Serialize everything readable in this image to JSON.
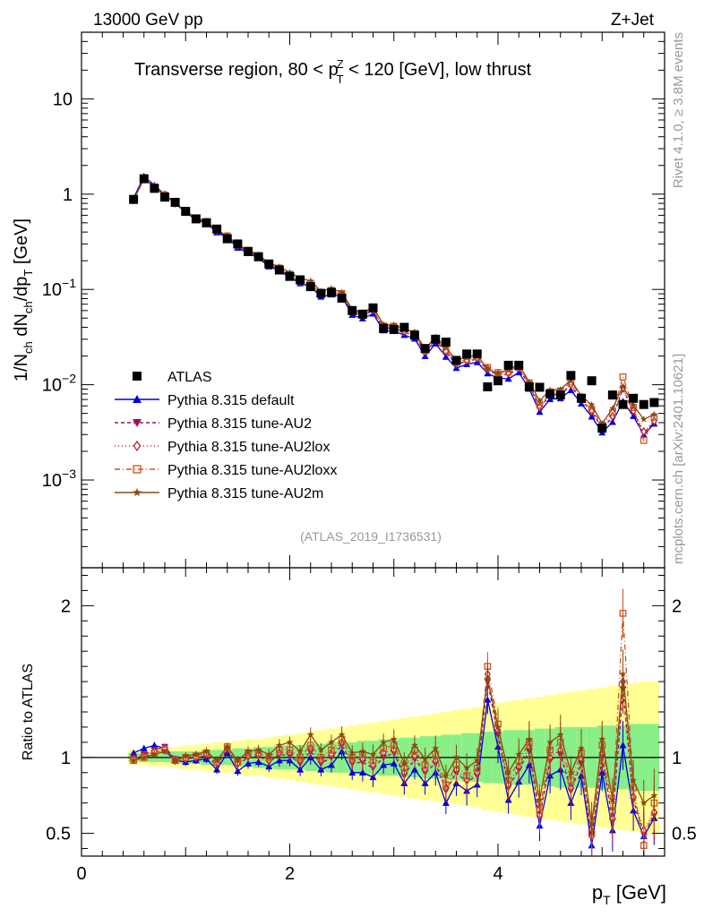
{
  "header": {
    "energy": "13000 GeV pp",
    "process": "Z+Jet"
  },
  "side_labels": {
    "rivet": "Rivet 4.1.0, ≥ 3.8M events",
    "mcplots": "mcplots.cern.ch [arXiv:2401.10621]"
  },
  "chart_data": {
    "type": "scatter",
    "title": "Transverse region, 80 < p_T^Z < 120 [GeV], low thrust",
    "title_parts": {
      "pre": "Transverse region, 80 < p",
      "sup": "Z",
      "sub": "T",
      "post": " < 120 [GeV], low thrust"
    },
    "analysis_tag": "(ATLAS_2019_I1736531)",
    "xlabel": "p_T [GeV]",
    "xlabel_parts": {
      "main": "p",
      "sub": "T",
      "unit": " [GeV]"
    },
    "ylabel": "1/N_ch dN_ch/dp_T [GeV]",
    "ratio_ylabel": "Ratio to ATLAS",
    "xlim": [
      0,
      5.6
    ],
    "ylim": [
      0.00012,
      50
    ],
    "ratio_ylim": [
      0.35,
      2.25
    ],
    "yscale": "log",
    "x_ticks": [
      0,
      2,
      4
    ],
    "x_tick_labels": [
      "0",
      "2",
      "4"
    ],
    "y_ticks": [
      10,
      1,
      0.1,
      0.01,
      0.001
    ],
    "y_tick_labels": [
      {
        "base": "10",
        "exp": ""
      },
      {
        "base": "1",
        "exp": ""
      },
      {
        "base": "10",
        "exp": "−1"
      },
      {
        "base": "10",
        "exp": "−2"
      },
      {
        "base": "10",
        "exp": "−3"
      }
    ],
    "ratio_ticks": [
      0.5,
      1,
      2
    ],
    "ratio_tick_labels": [
      "0.5",
      "1",
      "2"
    ],
    "x": [
      0.5,
      0.6,
      0.7,
      0.8,
      0.9,
      1.0,
      1.1,
      1.2,
      1.3,
      1.4,
      1.5,
      1.6,
      1.7,
      1.8,
      1.9,
      2.0,
      2.1,
      2.2,
      2.3,
      2.4,
      2.5,
      2.6,
      2.7,
      2.8,
      2.9,
      3.0,
      3.1,
      3.2,
      3.3,
      3.4,
      3.5,
      3.6,
      3.7,
      3.8,
      3.9,
      4.0,
      4.1,
      4.2,
      4.3,
      4.4,
      4.5,
      4.6,
      4.7,
      4.8,
      4.9,
      5.0,
      5.1,
      5.2,
      5.3,
      5.4,
      5.5
    ],
    "atlas": [
      0.88,
      1.45,
      1.15,
      0.93,
      0.82,
      0.66,
      0.55,
      0.5,
      0.43,
      0.34,
      0.3,
      0.25,
      0.22,
      0.185,
      0.16,
      0.137,
      0.126,
      0.107,
      0.091,
      0.093,
      0.081,
      0.06,
      0.055,
      0.064,
      0.039,
      0.038,
      0.04,
      0.033,
      0.024,
      0.03,
      0.028,
      0.018,
      0.021,
      0.021,
      0.0095,
      0.011,
      0.016,
      0.016,
      0.0095,
      0.0094,
      0.008,
      0.0078,
      0.0125,
      0.0072,
      0.011,
      0.0035,
      0.0078,
      0.0062,
      0.0072,
      0.0062,
      0.0065
    ],
    "band_green": [
      0.03,
      0.03,
      0.03,
      0.03,
      0.04,
      0.04,
      0.04,
      0.05,
      0.05,
      0.05,
      0.06,
      0.06,
      0.07,
      0.07,
      0.08,
      0.08,
      0.08,
      0.09,
      0.09,
      0.1,
      0.1,
      0.1,
      0.11,
      0.11,
      0.12,
      0.12,
      0.13,
      0.13,
      0.14,
      0.14,
      0.15,
      0.15,
      0.16,
      0.16,
      0.17,
      0.17,
      0.18,
      0.18,
      0.18,
      0.19,
      0.19,
      0.2,
      0.2,
      0.2,
      0.2,
      0.21,
      0.21,
      0.21,
      0.22,
      0.22,
      0.22
    ],
    "band_yellow": [
      0.05,
      0.05,
      0.06,
      0.06,
      0.07,
      0.08,
      0.08,
      0.09,
      0.1,
      0.1,
      0.11,
      0.12,
      0.12,
      0.13,
      0.14,
      0.15,
      0.16,
      0.17,
      0.18,
      0.19,
      0.2,
      0.21,
      0.22,
      0.23,
      0.24,
      0.25,
      0.26,
      0.27,
      0.28,
      0.29,
      0.3,
      0.31,
      0.32,
      0.33,
      0.35,
      0.36,
      0.37,
      0.38,
      0.39,
      0.4,
      0.41,
      0.42,
      0.43,
      0.44,
      0.45,
      0.46,
      0.47,
      0.48,
      0.49,
      0.5,
      0.5
    ],
    "series": [
      {
        "name": "Pythia 8.315 default",
        "color": "#0000dd",
        "marker": "triangle-up",
        "dash": "solid",
        "ratio": [
          1.03,
          1.06,
          1.08,
          1.06,
          0.98,
          0.97,
          0.98,
          0.99,
          0.92,
          1.03,
          0.91,
          0.96,
          0.97,
          0.94,
          0.98,
          0.98,
          0.92,
          1.0,
          0.92,
          0.95,
          1.04,
          0.9,
          0.9,
          0.87,
          0.95,
          0.96,
          0.83,
          0.92,
          0.83,
          0.9,
          0.7,
          0.83,
          0.78,
          0.82,
          1.38,
          1.07,
          0.72,
          0.84,
          0.95,
          0.55,
          0.88,
          0.92,
          0.7,
          0.88,
          0.42,
          0.9,
          0.52,
          1.08,
          0.65,
          0.48,
          0.6
        ]
      },
      {
        "name": "Pythia 8.315 tune-AU2",
        "color": "#9a1060",
        "marker": "triangle-down",
        "dash": "4,3",
        "ratio": [
          1.0,
          1.02,
          1.05,
          1.07,
          0.99,
          0.99,
          1.0,
          1.01,
          0.95,
          1.05,
          0.95,
          1.0,
          1.01,
          0.97,
          1.02,
          1.01,
          0.96,
          1.04,
          0.96,
          1.0,
          1.08,
          0.96,
          0.97,
          0.93,
          1.0,
          1.03,
          0.88,
          0.99,
          0.9,
          0.96,
          0.78,
          0.9,
          0.84,
          0.88,
          1.5,
          1.15,
          0.8,
          0.92,
          1.04,
          0.6,
          0.98,
          1.02,
          0.78,
          0.96,
          0.47,
          1.0,
          0.58,
          1.45,
          0.72,
          0.5,
          0.62
        ]
      },
      {
        "name": "Pythia 8.315 tune-AU2lox",
        "color": "#bb2233",
        "marker": "diamond",
        "dash": "1,3",
        "ratio": [
          0.99,
          1.01,
          1.04,
          1.06,
          0.98,
          0.99,
          1.0,
          1.02,
          0.96,
          1.06,
          0.96,
          1.01,
          1.02,
          0.98,
          1.03,
          1.03,
          0.98,
          1.06,
          0.98,
          1.02,
          1.1,
          0.98,
          0.99,
          0.95,
          1.03,
          1.05,
          0.9,
          1.01,
          0.92,
          0.98,
          0.8,
          0.92,
          0.85,
          0.9,
          1.55,
          1.18,
          0.82,
          0.94,
          1.07,
          0.62,
          1.0,
          1.05,
          0.8,
          0.99,
          0.48,
          1.03,
          0.6,
          1.5,
          0.74,
          0.52,
          0.64
        ]
      },
      {
        "name": "Pythia 8.315 tune-AU2loxx",
        "color": "#cc5522",
        "marker": "square-open",
        "dash": "6,3,1,3",
        "ratio": [
          0.98,
          1.0,
          1.03,
          1.05,
          0.98,
          1.0,
          1.01,
          1.03,
          0.97,
          1.07,
          0.97,
          1.03,
          1.03,
          1.0,
          1.05,
          1.05,
          1.0,
          1.08,
          1.0,
          1.05,
          1.12,
          1.0,
          1.02,
          0.98,
          1.06,
          1.08,
          0.93,
          1.05,
          0.95,
          1.02,
          0.82,
          0.95,
          0.88,
          0.93,
          1.6,
          1.22,
          0.85,
          0.98,
          1.1,
          0.65,
          1.05,
          1.1,
          0.85,
          1.03,
          0.5,
          1.08,
          0.65,
          1.95,
          0.8,
          0.42,
          0.7
        ]
      },
      {
        "name": "Pythia 8.315 tune-AU2m",
        "color": "#8a4a10",
        "marker": "star",
        "dash": "solid",
        "ratio": [
          0.98,
          1.0,
          1.02,
          1.04,
          0.98,
          1.01,
          1.02,
          1.04,
          0.98,
          1.07,
          0.98,
          1.04,
          1.05,
          1.02,
          1.08,
          1.1,
          1.04,
          1.15,
          1.05,
          1.1,
          1.15,
          1.03,
          1.04,
          1.02,
          1.1,
          1.12,
          0.96,
          1.08,
          0.99,
          1.06,
          0.88,
          1.0,
          0.93,
          0.98,
          1.52,
          1.2,
          0.9,
          1.02,
          1.12,
          0.72,
          1.1,
          1.15,
          0.9,
          1.06,
          0.56,
          1.12,
          0.72,
          1.55,
          0.85,
          0.7,
          0.75
        ]
      }
    ],
    "legend_data_label": "ATLAS",
    "legend_position": "lower-left"
  }
}
